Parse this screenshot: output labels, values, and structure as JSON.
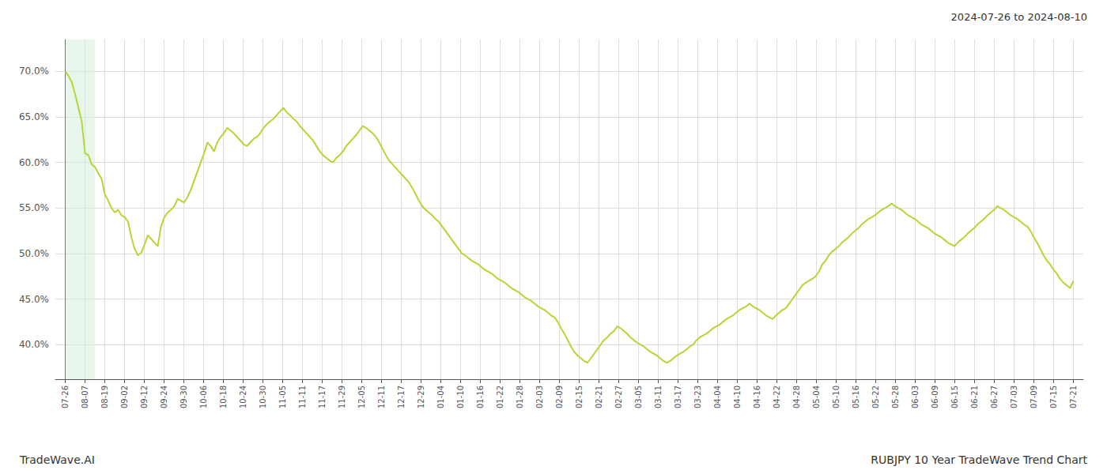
{
  "chart_data": {
    "type": "line",
    "title": "RUBJPY 10 Year TradeWave Trend Chart",
    "subtitle": "2024-07-26 to 2024-08-10",
    "annotations": [
      "TradeWave.AI"
    ],
    "xlim": [
      -0.5,
      51.5
    ],
    "xticks": [
      {
        "value": 0,
        "label": "07-26"
      },
      {
        "value": 1,
        "label": "08-07"
      },
      {
        "value": 2,
        "label": "08-19"
      },
      {
        "value": 3,
        "label": "09-02"
      },
      {
        "value": 4,
        "label": "09-12"
      },
      {
        "value": 5,
        "label": "09-24"
      },
      {
        "value": 6,
        "label": "09-30"
      },
      {
        "value": 7,
        "label": "10-06"
      },
      {
        "value": 8,
        "label": "10-18"
      },
      {
        "value": 9,
        "label": "10-24"
      },
      {
        "value": 10,
        "label": "10-30"
      },
      {
        "value": 11,
        "label": "11-05"
      },
      {
        "value": 12,
        "label": "11-11"
      },
      {
        "value": 13,
        "label": "11-17"
      },
      {
        "value": 14,
        "label": "11-29"
      },
      {
        "value": 15,
        "label": "12-05"
      },
      {
        "value": 16,
        "label": "12-11"
      },
      {
        "value": 17,
        "label": "12-17"
      },
      {
        "value": 18,
        "label": "12-29"
      },
      {
        "value": 19,
        "label": "01-04"
      },
      {
        "value": 20,
        "label": "01-10"
      },
      {
        "value": 21,
        "label": "01-16"
      },
      {
        "value": 22,
        "label": "01-22"
      },
      {
        "value": 23,
        "label": "01-28"
      },
      {
        "value": 24,
        "label": "02-03"
      },
      {
        "value": 25,
        "label": "02-09"
      },
      {
        "value": 26,
        "label": "02-15"
      },
      {
        "value": 27,
        "label": "02-21"
      },
      {
        "value": 28,
        "label": "02-27"
      },
      {
        "value": 29,
        "label": "03-05"
      },
      {
        "value": 30,
        "label": "03-11"
      },
      {
        "value": 31,
        "label": "03-17"
      },
      {
        "value": 32,
        "label": "03-23"
      },
      {
        "value": 33,
        "label": "04-04"
      },
      {
        "value": 34,
        "label": "04-10"
      },
      {
        "value": 35,
        "label": "04-16"
      },
      {
        "value": 36,
        "label": "04-22"
      },
      {
        "value": 37,
        "label": "04-28"
      },
      {
        "value": 38,
        "label": "05-04"
      },
      {
        "value": 39,
        "label": "05-10"
      },
      {
        "value": 40,
        "label": "05-16"
      },
      {
        "value": 41,
        "label": "05-22"
      },
      {
        "value": 42,
        "label": "05-28"
      },
      {
        "value": 43,
        "label": "06-03"
      },
      {
        "value": 44,
        "label": "06-09"
      },
      {
        "value": 45,
        "label": "06-15"
      },
      {
        "value": 46,
        "label": "06-21"
      },
      {
        "value": 47,
        "label": "06-27"
      },
      {
        "value": 48,
        "label": "07-03"
      },
      {
        "value": 49,
        "label": "07-09"
      },
      {
        "value": 50,
        "label": "07-15"
      },
      {
        "value": 51,
        "label": "07-21"
      }
    ],
    "ylim": [
      0.362,
      0.735
    ],
    "yticks": [
      {
        "value": 0.4,
        "label": "40.0%"
      },
      {
        "value": 0.45,
        "label": "45.0%"
      },
      {
        "value": 0.5,
        "label": "50.0%"
      },
      {
        "value": 0.55,
        "label": "55.0%"
      },
      {
        "value": 0.6,
        "label": "60.0%"
      },
      {
        "value": 0.65,
        "label": "65.0%"
      },
      {
        "value": 0.7,
        "label": "70.0%"
      }
    ],
    "grid": true,
    "shade": {
      "start": 0,
      "end": 1.5,
      "color": "#d4edda"
    },
    "values": [
      0.7,
      0.695,
      0.688,
      0.675,
      0.66,
      0.645,
      0.61,
      0.608,
      0.598,
      0.595,
      0.588,
      0.582,
      0.565,
      0.558,
      0.55,
      0.545,
      0.548,
      0.542,
      0.54,
      0.535,
      0.518,
      0.505,
      0.498,
      0.501,
      0.51,
      0.52,
      0.516,
      0.512,
      0.508,
      0.53,
      0.54,
      0.545,
      0.548,
      0.552,
      0.56,
      0.558,
      0.556,
      0.562,
      0.57,
      0.58,
      0.59,
      0.6,
      0.61,
      0.622,
      0.618,
      0.612,
      0.622,
      0.628,
      0.632,
      0.638,
      0.635,
      0.632,
      0.628,
      0.624,
      0.62,
      0.618,
      0.622,
      0.626,
      0.628,
      0.632,
      0.638,
      0.642,
      0.645,
      0.648,
      0.652,
      0.656,
      0.66,
      0.655,
      0.652,
      0.648,
      0.645,
      0.64,
      0.636,
      0.632,
      0.628,
      0.624,
      0.618,
      0.612,
      0.608,
      0.605,
      0.602,
      0.6,
      0.605,
      0.608,
      0.612,
      0.618,
      0.622,
      0.626,
      0.63,
      0.635,
      0.64,
      0.638,
      0.635,
      0.632,
      0.628,
      0.622,
      0.615,
      0.608,
      0.602,
      0.598,
      0.594,
      0.59,
      0.586,
      0.582,
      0.578,
      0.572,
      0.565,
      0.558,
      0.552,
      0.548,
      0.545,
      0.542,
      0.538,
      0.535,
      0.53,
      0.525,
      0.52,
      0.515,
      0.51,
      0.505,
      0.5,
      0.498,
      0.495,
      0.492,
      0.49,
      0.488,
      0.485,
      0.482,
      0.48,
      0.478,
      0.475,
      0.472,
      0.47,
      0.468,
      0.465,
      0.462,
      0.46,
      0.458,
      0.455,
      0.452,
      0.45,
      0.448,
      0.445,
      0.442,
      0.44,
      0.438,
      0.435,
      0.432,
      0.43,
      0.425,
      0.418,
      0.412,
      0.405,
      0.398,
      0.392,
      0.388,
      0.385,
      0.382,
      0.38,
      0.385,
      0.39,
      0.395,
      0.4,
      0.405,
      0.408,
      0.412,
      0.415,
      0.42,
      0.418,
      0.415,
      0.412,
      0.408,
      0.405,
      0.402,
      0.4,
      0.398,
      0.395,
      0.392,
      0.39,
      0.388,
      0.385,
      0.382,
      0.38,
      0.382,
      0.385,
      0.388,
      0.39,
      0.392,
      0.395,
      0.398,
      0.4,
      0.405,
      0.408,
      0.41,
      0.412,
      0.415,
      0.418,
      0.42,
      0.422,
      0.425,
      0.428,
      0.43,
      0.432,
      0.435,
      0.438,
      0.44,
      0.442,
      0.445,
      0.442,
      0.44,
      0.438,
      0.435,
      0.432,
      0.43,
      0.428,
      0.432,
      0.435,
      0.438,
      0.44,
      0.445,
      0.45,
      0.455,
      0.46,
      0.465,
      0.468,
      0.47,
      0.472,
      0.475,
      0.48,
      0.488,
      0.492,
      0.498,
      0.502,
      0.505,
      0.508,
      0.512,
      0.515,
      0.518,
      0.522,
      0.525,
      0.528,
      0.532,
      0.535,
      0.538,
      0.54,
      0.542,
      0.545,
      0.548,
      0.55,
      0.552,
      0.555,
      0.552,
      0.55,
      0.548,
      0.545,
      0.542,
      0.54,
      0.538,
      0.535,
      0.532,
      0.53,
      0.528,
      0.525,
      0.522,
      0.52,
      0.518,
      0.515,
      0.512,
      0.51,
      0.508,
      0.512,
      0.515,
      0.518,
      0.522,
      0.525,
      0.528,
      0.532,
      0.535,
      0.538,
      0.542,
      0.545,
      0.548,
      0.552,
      0.55,
      0.548,
      0.545,
      0.542,
      0.54,
      0.538,
      0.535,
      0.532,
      0.53,
      0.525,
      0.518,
      0.512,
      0.505,
      0.498,
      0.492,
      0.488,
      0.482,
      0.478,
      0.472,
      0.468,
      0.465,
      0.462,
      0.47
    ]
  }
}
